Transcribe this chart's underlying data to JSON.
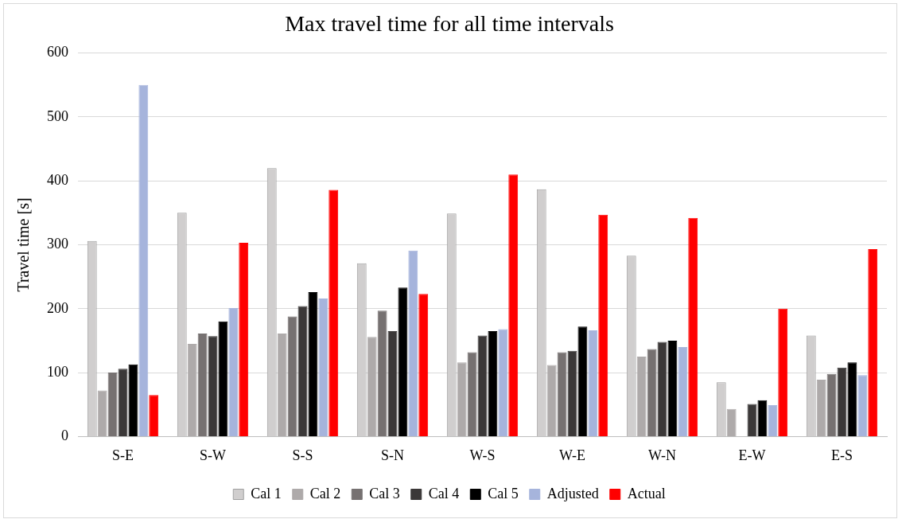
{
  "chart_data": {
    "type": "bar",
    "title": "Max travel time for all time intervals",
    "ylabel": "Travel time [s]",
    "categories": [
      "S-E",
      "S-W",
      "S-S",
      "S-N",
      "W-S",
      "W-E",
      "W-N",
      "E-W",
      "E-S"
    ],
    "series": [
      {
        "name": "Cal 1",
        "color": "#d0cece",
        "values": [
          306,
          350,
          420,
          271,
          349,
          387,
          283,
          85,
          158
        ]
      },
      {
        "name": "Cal 2",
        "color": "#aeaaaa",
        "values": [
          72,
          145,
          161,
          156,
          116,
          112,
          125,
          43,
          89
        ]
      },
      {
        "name": "Cal 3",
        "color": "#767171",
        "values": [
          100,
          161,
          188,
          197,
          132,
          132,
          137,
          null,
          98
        ]
      },
      {
        "name": "Cal 4",
        "color": "#3b3838",
        "values": [
          106,
          157,
          204,
          165,
          158,
          134,
          148,
          51,
          108
        ]
      },
      {
        "name": "Cal 5",
        "color": "#000000",
        "values": [
          113,
          180,
          226,
          233,
          165,
          172,
          150,
          57,
          116
        ]
      },
      {
        "name": "Adjusted",
        "color": "#a6b4dc",
        "values": [
          550,
          201,
          216,
          291,
          168,
          166,
          140,
          49,
          96
        ]
      },
      {
        "name": "Actual",
        "color": "#ff0000",
        "values": [
          65,
          303,
          386,
          223,
          410,
          347,
          342,
          200,
          293
        ]
      }
    ],
    "ylim": [
      0,
      600
    ],
    "yticks": [
      0,
      100,
      200,
      300,
      400,
      500,
      600
    ],
    "grid": "y",
    "legend": "bottom"
  }
}
